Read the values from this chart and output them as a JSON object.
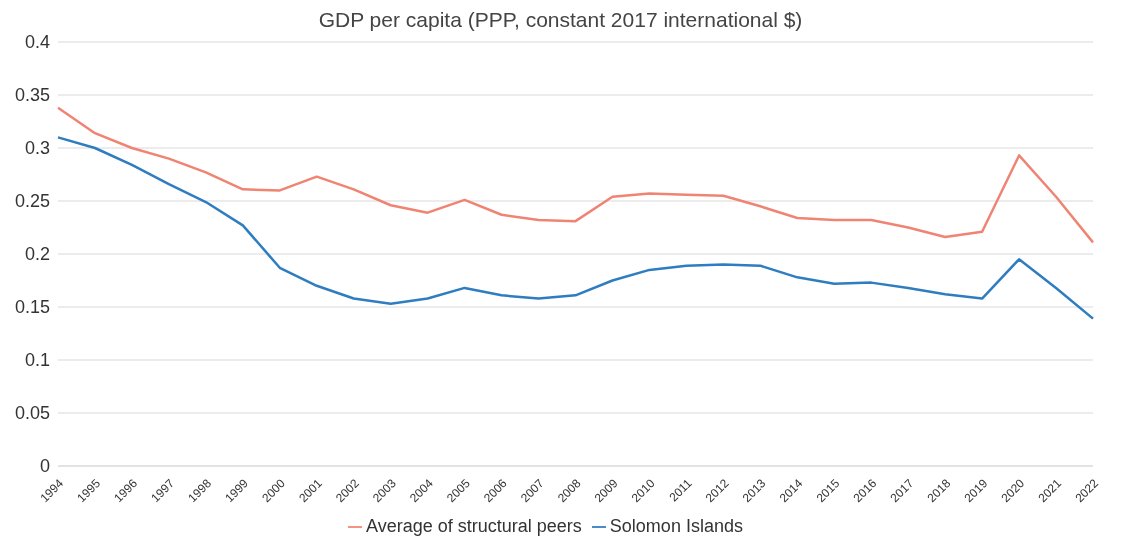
{
  "chart_data": {
    "type": "line",
    "title": "GDP per capita (PPP, constant 2017 international $)",
    "categories": [
      "1994",
      "1995",
      "1996",
      "1997",
      "1998",
      "1999",
      "2000",
      "2001",
      "2002",
      "2003",
      "2004",
      "2005",
      "2006",
      "2007",
      "2008",
      "2009",
      "2010",
      "2011",
      "2012",
      "2013",
      "2014",
      "2015",
      "2016",
      "2017",
      "2018",
      "2019",
      "2020",
      "2021",
      "2022"
    ],
    "series": [
      {
        "name": "Solomon Islands",
        "color": "#2e7dc0",
        "values": [
          0.31,
          0.3,
          0.284,
          0.266,
          0.249,
          0.227,
          0.187,
          0.17,
          0.158,
          0.153,
          0.158,
          0.168,
          0.161,
          0.158,
          0.161,
          0.175,
          0.185,
          0.189,
          0.19,
          0.189,
          0.178,
          0.172,
          0.173,
          0.168,
          0.162,
          0.158,
          0.195,
          0.168,
          0.139
        ]
      },
      {
        "name": "Average of structural peers",
        "color": "#f08473",
        "values": [
          0.338,
          0.314,
          0.3,
          0.29,
          0.277,
          0.261,
          0.26,
          0.273,
          0.261,
          0.246,
          0.239,
          0.251,
          0.237,
          0.232,
          0.231,
          0.254,
          0.257,
          0.256,
          0.255,
          0.245,
          0.234,
          0.232,
          0.232,
          0.225,
          0.216,
          0.221,
          0.293,
          0.254,
          0.211
        ]
      }
    ],
    "ylim": [
      0,
      0.4
    ],
    "yticks": [
      0,
      0.05,
      0.1,
      0.15,
      0.2,
      0.25,
      0.3,
      0.35,
      0.4
    ],
    "grid": "y",
    "legend": "bottom",
    "marker": "none",
    "line_style": "solid"
  }
}
